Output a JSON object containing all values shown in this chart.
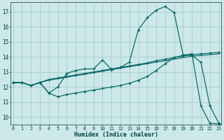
{
  "background_color": "#cce8e8",
  "grid_color": "#aacccc",
  "line_color": "#006666",
  "xlim": [
    -0.3,
    23.3
  ],
  "ylim": [
    9.5,
    17.65
  ],
  "xticks": [
    0,
    1,
    2,
    3,
    4,
    5,
    6,
    7,
    8,
    9,
    10,
    11,
    12,
    13,
    14,
    15,
    16,
    17,
    18,
    19,
    20,
    21,
    22,
    23
  ],
  "yticks": [
    10,
    11,
    12,
    13,
    14,
    15,
    16,
    17
  ],
  "xlabel": "Humidex (Indice chaleur)",
  "curve_main_x": [
    0,
    1,
    2,
    3,
    4,
    5,
    6,
    7,
    8,
    9,
    10,
    11,
    12,
    13,
    14,
    15,
    16,
    17,
    18,
    19,
    20,
    21,
    22,
    23
  ],
  "curve_main_y": [
    12.3,
    12.3,
    12.1,
    12.3,
    11.6,
    12.0,
    12.9,
    13.1,
    13.2,
    13.2,
    13.8,
    13.15,
    13.3,
    13.65,
    15.8,
    16.6,
    17.1,
    17.35,
    16.95,
    14.15,
    14.1,
    13.65,
    10.75,
    9.6
  ],
  "curve_upper_x": [
    0,
    1,
    2,
    3,
    4,
    5,
    6,
    7,
    8,
    9,
    10,
    11,
    12,
    13,
    14,
    15,
    16,
    17,
    18,
    19,
    20,
    21,
    22,
    23
  ],
  "curve_upper_y": [
    12.3,
    12.3,
    12.1,
    12.3,
    12.5,
    12.6,
    12.7,
    12.8,
    12.9,
    13.0,
    13.1,
    13.2,
    13.3,
    13.4,
    13.5,
    13.6,
    13.75,
    13.85,
    13.95,
    14.05,
    14.15,
    14.2,
    14.25,
    14.3
  ],
  "curve_lower1_x": [
    0,
    1,
    2,
    3,
    4,
    5,
    6,
    7,
    8,
    9,
    10,
    11,
    12,
    13,
    14,
    15,
    16,
    17,
    18,
    19,
    20,
    21,
    22,
    23
  ],
  "curve_lower1_y": [
    12.3,
    12.3,
    12.1,
    12.3,
    12.45,
    12.55,
    12.65,
    12.75,
    12.85,
    12.95,
    13.05,
    13.15,
    13.25,
    13.35,
    13.45,
    13.55,
    13.65,
    13.75,
    13.85,
    13.95,
    14.05,
    14.1,
    14.15,
    14.2
  ],
  "curve_bottom_x": [
    0,
    1,
    2,
    3,
    4,
    5,
    6,
    7,
    8,
    9,
    10,
    11,
    12,
    13,
    14,
    15,
    16,
    17,
    18,
    19,
    20,
    21,
    22,
    23
  ],
  "curve_bottom_y": [
    12.3,
    12.3,
    12.1,
    12.3,
    11.6,
    11.35,
    11.5,
    11.6,
    11.7,
    11.8,
    11.9,
    12.0,
    12.1,
    12.25,
    12.45,
    12.7,
    13.1,
    13.55,
    13.95,
    14.1,
    14.2,
    10.75,
    9.6,
    9.55
  ]
}
